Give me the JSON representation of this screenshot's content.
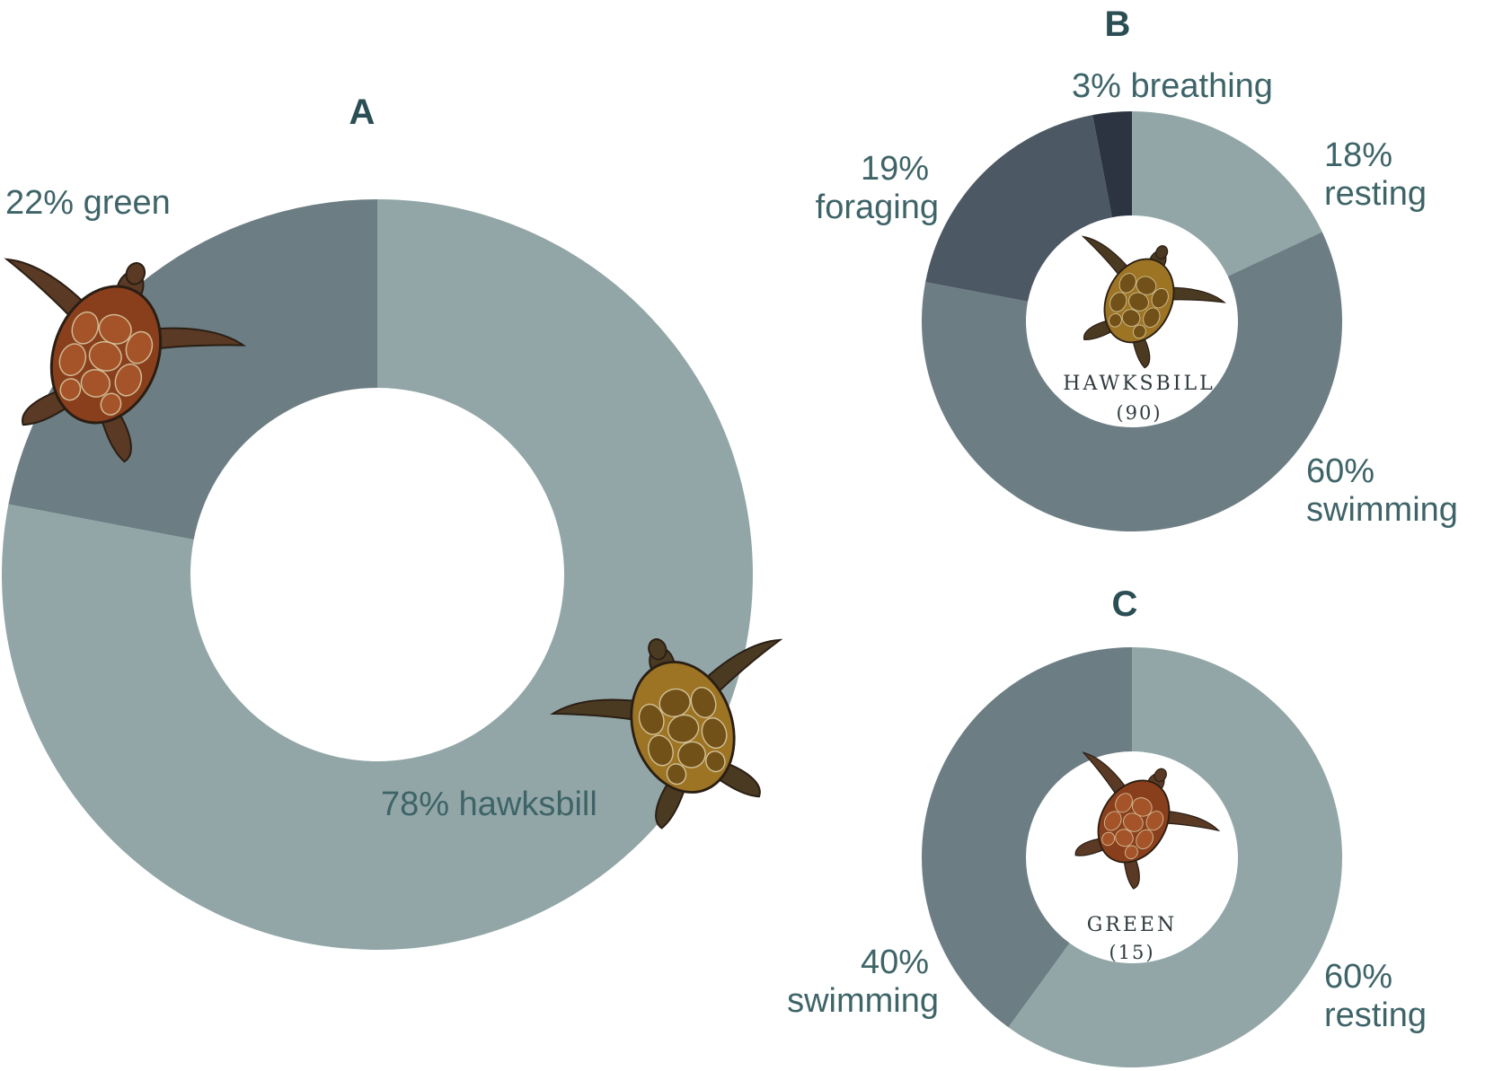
{
  "chart_data": [
    {
      "type": "pie",
      "panel": "A",
      "slices": [
        {
          "label": "78% hawksbill",
          "value": 78,
          "color": "#92a6a7"
        },
        {
          "label": "22% green",
          "value": 22,
          "color": "#6c7e84"
        }
      ]
    },
    {
      "type": "pie",
      "panel": "B",
      "center_label": "HAWKSBILL",
      "center_count": "(90)",
      "slices": [
        {
          "label_pct": "18%",
          "label_name": "resting",
          "value": 18,
          "color": "#92a6a7"
        },
        {
          "label_pct": "60%",
          "label_name": "swimming",
          "value": 60,
          "color": "#6c7e84"
        },
        {
          "label_pct": "19%",
          "label_name": "foraging",
          "value": 19,
          "color": "#4c5863"
        },
        {
          "label_pct": "3%",
          "label_name": "breathing",
          "value": 3,
          "color": "#2c3341"
        }
      ]
    },
    {
      "type": "pie",
      "panel": "C",
      "center_label": "GREEN",
      "center_count": "(15)",
      "slices": [
        {
          "label_pct": "60%",
          "label_name": "resting",
          "value": 60,
          "color": "#92a6a7"
        },
        {
          "label_pct": "40%",
          "label_name": "swimming",
          "value": 40,
          "color": "#6c7e84"
        }
      ]
    }
  ],
  "labels": {
    "a_green": "22% green",
    "a_hawksbill": "78% hawksbill",
    "b_breathing": "3% breathing",
    "b_resting_pct": "18%",
    "b_resting_name": "resting",
    "b_foraging_pct": "19%",
    "b_foraging_name": "foraging",
    "b_swimming_pct": "60%",
    "b_swimming_name": "swimming",
    "c_swimming_pct": "40%",
    "c_swimming_name": "swimming",
    "c_resting_pct": "60%",
    "c_resting_name": "resting"
  },
  "illustrations": {
    "green_turtle": {
      "icon": "green-turtle-icon",
      "shell_color": "#8a3f1c",
      "scute_color": "#a8562a",
      "flipper_color": "#5a3a24"
    },
    "hawksbill_turtle": {
      "icon": "hawksbill-turtle-icon",
      "shell_color": "#9c7424",
      "scute_color": "#6e4e18",
      "flipper_color": "#4a3a22"
    }
  }
}
